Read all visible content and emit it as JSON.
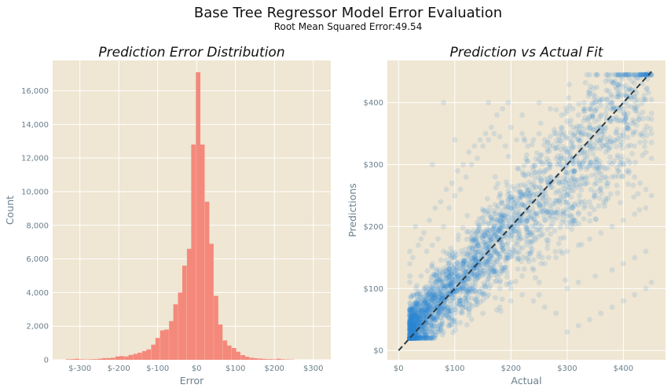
{
  "figure": {
    "title": "Base Tree Regressor Model Error Evaluation",
    "subtitle": "Root Mean Squared Error:49.54"
  },
  "colors": {
    "panel_bg": "#efe6d3",
    "grid": "#ffffff",
    "histogram": "#f4897b",
    "scatter": "#2a88d4",
    "fit_line": "#2b3b45"
  },
  "chart_data": [
    {
      "type": "bar",
      "subtype": "histogram",
      "title": "Prediction Error Distribution",
      "xlabel": "Error",
      "ylabel": "Count",
      "xlim": [
        -370,
        345
      ],
      "ylim": [
        0,
        17800
      ],
      "grid": true,
      "bin_width": 11.5,
      "bins": [
        {
          "x": -330,
          "count": 30
        },
        {
          "x": -318,
          "count": 40
        },
        {
          "x": -307,
          "count": 60
        },
        {
          "x": -295,
          "count": 30
        },
        {
          "x": -284,
          "count": 20
        },
        {
          "x": -272,
          "count": 30
        },
        {
          "x": -261,
          "count": 40
        },
        {
          "x": -249,
          "count": 60
        },
        {
          "x": -238,
          "count": 100
        },
        {
          "x": -226,
          "count": 100
        },
        {
          "x": -215,
          "count": 120
        },
        {
          "x": -203,
          "count": 200
        },
        {
          "x": -192,
          "count": 220
        },
        {
          "x": -180,
          "count": 200
        },
        {
          "x": -169,
          "count": 290
        },
        {
          "x": -157,
          "count": 350
        },
        {
          "x": -146,
          "count": 420
        },
        {
          "x": -134,
          "count": 520
        },
        {
          "x": -123,
          "count": 620
        },
        {
          "x": -111,
          "count": 900
        },
        {
          "x": -100,
          "count": 1300
        },
        {
          "x": -88,
          "count": 1750
        },
        {
          "x": -77,
          "count": 1800
        },
        {
          "x": -65,
          "count": 2300
        },
        {
          "x": -54,
          "count": 3300
        },
        {
          "x": -42,
          "count": 4000
        },
        {
          "x": -31,
          "count": 5600
        },
        {
          "x": -19,
          "count": 6600
        },
        {
          "x": -8,
          "count": 12800
        },
        {
          "x": 4,
          "count": 17100
        },
        {
          "x": 15,
          "count": 12800
        },
        {
          "x": 27,
          "count": 9400
        },
        {
          "x": 38,
          "count": 6900
        },
        {
          "x": 50,
          "count": 3800
        },
        {
          "x": 61,
          "count": 2100
        },
        {
          "x": 73,
          "count": 1150
        },
        {
          "x": 84,
          "count": 850
        },
        {
          "x": 96,
          "count": 700
        },
        {
          "x": 107,
          "count": 480
        },
        {
          "x": 119,
          "count": 280
        },
        {
          "x": 130,
          "count": 180
        },
        {
          "x": 142,
          "count": 120
        },
        {
          "x": 153,
          "count": 90
        },
        {
          "x": 165,
          "count": 70
        },
        {
          "x": 176,
          "count": 50
        },
        {
          "x": 188,
          "count": 40
        },
        {
          "x": 199,
          "count": 30
        },
        {
          "x": 211,
          "count": 60
        },
        {
          "x": 222,
          "count": 30
        },
        {
          "x": 234,
          "count": 20
        },
        {
          "x": 245,
          "count": 15
        }
      ],
      "x_ticks": [
        {
          "value": -300,
          "label": "$-300"
        },
        {
          "value": -200,
          "label": "$-200"
        },
        {
          "value": -100,
          "label": "$-100"
        },
        {
          "value": 0,
          "label": "$0"
        },
        {
          "value": 100,
          "label": "$100"
        },
        {
          "value": 200,
          "label": "$200"
        },
        {
          "value": 300,
          "label": "$300"
        }
      ],
      "y_ticks": [
        {
          "value": 0,
          "label": "0"
        },
        {
          "value": 2000,
          "label": "2,000"
        },
        {
          "value": 4000,
          "label": "4,000"
        },
        {
          "value": 6000,
          "label": "6,000"
        },
        {
          "value": 8000,
          "label": "8,000"
        },
        {
          "value": 10000,
          "label": "10,000"
        },
        {
          "value": 12000,
          "label": "12,000"
        },
        {
          "value": 14000,
          "label": "14,000"
        },
        {
          "value": 16000,
          "label": "16,000"
        }
      ]
    },
    {
      "type": "scatter",
      "title": "Prediction vs Actual Fit",
      "xlabel": "Actual",
      "ylabel": "Predictions",
      "xlim": [
        -20,
        475
      ],
      "ylim": [
        -15,
        468
      ],
      "grid": true,
      "point_alpha": 0.14,
      "diagonal": {
        "from": [
          0,
          0
        ],
        "to": [
          450,
          450
        ],
        "style": "dashed"
      },
      "x_ticks": [
        {
          "value": 0,
          "label": "$0"
        },
        {
          "value": 100,
          "label": "$100"
        },
        {
          "value": 200,
          "label": "$200"
        },
        {
          "value": 300,
          "label": "$300"
        },
        {
          "value": 400,
          "label": "$400"
        }
      ],
      "y_ticks": [
        {
          "value": 0,
          "label": "$0"
        },
        {
          "value": 100,
          "label": "$100"
        },
        {
          "value": 200,
          "label": "$200"
        },
        {
          "value": 300,
          "label": "$300"
        },
        {
          "value": 400,
          "label": "$400"
        }
      ],
      "points": [
        [
          25,
          28
        ],
        [
          30,
          45
        ],
        [
          35,
          40
        ],
        [
          40,
          60
        ],
        [
          45,
          55
        ],
        [
          50,
          75
        ],
        [
          55,
          70
        ],
        [
          60,
          90
        ],
        [
          65,
          80
        ],
        [
          70,
          100
        ],
        [
          75,
          95
        ],
        [
          80,
          110
        ],
        [
          85,
          105
        ],
        [
          90,
          120
        ],
        [
          95,
          115
        ],
        [
          100,
          130
        ],
        [
          105,
          120
        ],
        [
          110,
          140
        ],
        [
          115,
          135
        ],
        [
          120,
          150
        ],
        [
          125,
          140
        ],
        [
          130,
          160
        ],
        [
          135,
          150
        ],
        [
          140,
          170
        ],
        [
          145,
          165
        ],
        [
          150,
          180
        ],
        [
          155,
          170
        ],
        [
          160,
          190
        ],
        [
          165,
          180
        ],
        [
          170,
          200
        ],
        [
          175,
          190
        ],
        [
          180,
          210
        ],
        [
          185,
          200
        ],
        [
          190,
          220
        ],
        [
          195,
          215
        ],
        [
          200,
          230
        ],
        [
          210,
          240
        ],
        [
          220,
          250
        ],
        [
          230,
          260
        ],
        [
          240,
          270
        ],
        [
          250,
          280
        ],
        [
          260,
          290
        ],
        [
          270,
          300
        ],
        [
          280,
          310
        ],
        [
          290,
          300
        ],
        [
          300,
          320
        ],
        [
          310,
          330
        ],
        [
          320,
          340
        ],
        [
          330,
          350
        ],
        [
          340,
          360
        ],
        [
          350,
          370
        ],
        [
          360,
          380
        ],
        [
          370,
          390
        ],
        [
          380,
          400
        ],
        [
          390,
          410
        ],
        [
          400,
          400
        ],
        [
          410,
          420
        ],
        [
          420,
          410
        ],
        [
          430,
          440
        ],
        [
          445,
          448
        ],
        [
          40,
          120
        ],
        [
          50,
          160
        ],
        [
          60,
          140
        ],
        [
          70,
          180
        ],
        [
          80,
          200
        ],
        [
          90,
          230
        ],
        [
          100,
          250
        ],
        [
          110,
          260
        ],
        [
          120,
          280
        ],
        [
          130,
          300
        ],
        [
          140,
          310
        ],
        [
          150,
          330
        ],
        [
          160,
          340
        ],
        [
          170,
          350
        ],
        [
          180,
          345
        ],
        [
          190,
          330
        ],
        [
          200,
          360
        ],
        [
          210,
          340
        ],
        [
          220,
          350
        ],
        [
          230,
          330
        ],
        [
          240,
          340
        ],
        [
          250,
          350
        ],
        [
          260,
          340
        ],
        [
          270,
          345
        ],
        [
          280,
          350
        ],
        [
          290,
          360
        ],
        [
          300,
          370
        ],
        [
          310,
          360
        ],
        [
          320,
          380
        ],
        [
          330,
          390
        ],
        [
          340,
          390
        ],
        [
          350,
          400
        ],
        [
          360,
          395
        ],
        [
          370,
          405
        ],
        [
          380,
          410
        ],
        [
          390,
          415
        ],
        [
          100,
          60
        ],
        [
          120,
          70
        ],
        [
          140,
          80
        ],
        [
          160,
          90
        ],
        [
          180,
          100
        ],
        [
          200,
          110
        ],
        [
          220,
          120
        ],
        [
          240,
          130
        ],
        [
          260,
          140
        ],
        [
          280,
          150
        ],
        [
          300,
          160
        ],
        [
          320,
          170
        ],
        [
          340,
          180
        ],
        [
          360,
          190
        ],
        [
          380,
          200
        ],
        [
          400,
          210
        ],
        [
          420,
          220
        ],
        [
          440,
          230
        ],
        [
          300,
          100
        ],
        [
          320,
          110
        ],
        [
          350,
          120
        ],
        [
          380,
          130
        ],
        [
          400,
          140
        ],
        [
          420,
          150
        ],
        [
          440,
          160
        ],
        [
          250,
          90
        ],
        [
          200,
          80
        ],
        [
          180,
          70
        ],
        [
          150,
          60
        ],
        [
          130,
          50
        ],
        [
          110,
          45
        ],
        [
          90,
          40
        ],
        [
          70,
          35
        ],
        [
          60,
          30
        ],
        [
          300,
          30
        ],
        [
          320,
          40
        ],
        [
          340,
          50
        ],
        [
          360,
          60
        ],
        [
          380,
          70
        ],
        [
          400,
          80
        ],
        [
          420,
          90
        ],
        [
          440,
          100
        ],
        [
          450,
          110
        ],
        [
          280,
          60
        ],
        [
          260,
          70
        ],
        [
          240,
          80
        ],
        [
          220,
          90
        ],
        [
          200,
          100
        ],
        [
          180,
          110
        ],
        [
          160,
          120
        ],
        [
          140,
          130
        ],
        [
          120,
          140
        ],
        [
          100,
          150
        ],
        [
          80,
          160
        ],
        [
          60,
          170
        ],
        [
          40,
          180
        ],
        [
          30,
          200
        ],
        [
          20,
          160
        ],
        [
          20,
          140
        ],
        [
          20,
          120
        ],
        [
          20,
          110
        ],
        [
          25,
          150
        ],
        [
          35,
          170
        ],
        [
          45,
          190
        ],
        [
          55,
          210
        ],
        [
          65,
          230
        ],
        [
          75,
          240
        ],
        [
          85,
          260
        ],
        [
          95,
          270
        ],
        [
          105,
          290
        ],
        [
          115,
          300
        ],
        [
          125,
          320
        ],
        [
          135,
          330
        ],
        [
          145,
          340
        ],
        [
          155,
          350
        ],
        [
          165,
          360
        ],
        [
          175,
          380
        ],
        [
          185,
          390
        ],
        [
          195,
          400
        ],
        [
          80,
          400
        ],
        [
          60,
          300
        ],
        [
          100,
          340
        ],
        [
          160,
          400
        ],
        [
          220,
          380
        ],
        [
          250,
          400
        ],
        [
          270,
          390
        ],
        [
          290,
          380
        ],
        [
          310,
          390
        ],
        [
          330,
          400
        ],
        [
          350,
          410
        ],
        [
          370,
          420
        ],
        [
          390,
          430
        ],
        [
          410,
          440
        ],
        [
          430,
          445
        ],
        [
          400,
          300
        ],
        [
          410,
          290
        ],
        [
          420,
          280
        ],
        [
          430,
          270
        ],
        [
          440,
          260
        ],
        [
          450,
          250
        ],
        [
          400,
          350
        ],
        [
          420,
          330
        ],
        [
          440,
          320
        ],
        [
          450,
          310
        ],
        [
          300,
          200
        ],
        [
          310,
          210
        ],
        [
          320,
          220
        ],
        [
          330,
          230
        ],
        [
          340,
          240
        ],
        [
          350,
          250
        ],
        [
          360,
          260
        ],
        [
          370,
          270
        ],
        [
          380,
          280
        ],
        [
          390,
          290
        ],
        [
          200,
          200
        ],
        [
          210,
          210
        ],
        [
          190,
          190
        ],
        [
          180,
          180
        ],
        [
          170,
          170
        ],
        [
          160,
          160
        ],
        [
          150,
          150
        ],
        [
          140,
          140
        ],
        [
          130,
          130
        ],
        [
          120,
          120
        ],
        [
          110,
          110
        ],
        [
          100,
          100
        ],
        [
          90,
          90
        ],
        [
          80,
          80
        ],
        [
          70,
          70
        ],
        [
          60,
          60
        ],
        [
          50,
          50
        ],
        [
          40,
          40
        ],
        [
          35,
          35
        ],
        [
          30,
          30
        ]
      ]
    }
  ]
}
